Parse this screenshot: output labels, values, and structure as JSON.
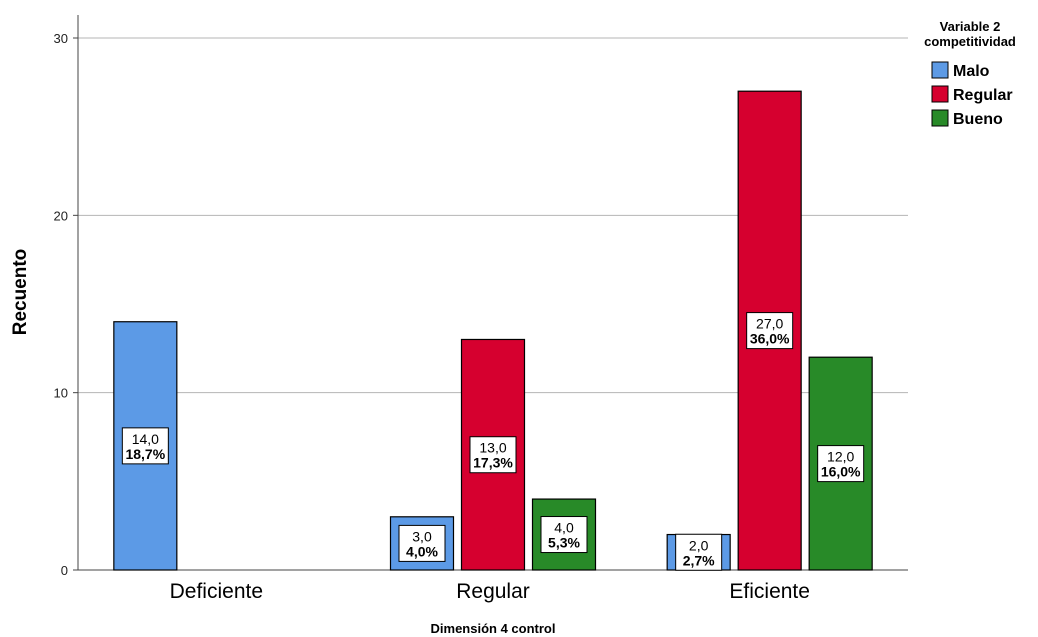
{
  "chart_data": {
    "type": "bar",
    "title": "",
    "xlabel": "Dimensión 4 control",
    "ylabel": "Recuento",
    "ylim": [
      0,
      30
    ],
    "yticks": [
      0,
      10,
      20,
      30
    ],
    "grid": "horizontal",
    "legend_placement": "top-right",
    "legend_title_lines": [
      "Variable 2",
      "competitividad"
    ],
    "categories": [
      "Deficiente",
      "Regular",
      "Eficiente"
    ],
    "series": [
      {
        "name": "Malo",
        "color": "#5c9ae6",
        "values": [
          14,
          3,
          2
        ],
        "labels": [
          "14,0",
          "3,0",
          "2,0"
        ],
        "pct_labels": [
          "18,7%",
          "4,0%",
          "2,7%"
        ]
      },
      {
        "name": "Regular",
        "color": "#d6002f",
        "values": [
          0,
          13,
          27
        ],
        "labels": [
          "",
          "13,0",
          "27,0"
        ],
        "pct_labels": [
          "",
          "17,3%",
          "36,0%"
        ]
      },
      {
        "name": "Bueno",
        "color": "#288a28",
        "values": [
          0,
          4,
          12
        ],
        "labels": [
          "",
          "4,0",
          "12,0"
        ],
        "pct_labels": [
          "",
          "5,3%",
          "16,0%"
        ]
      }
    ]
  }
}
